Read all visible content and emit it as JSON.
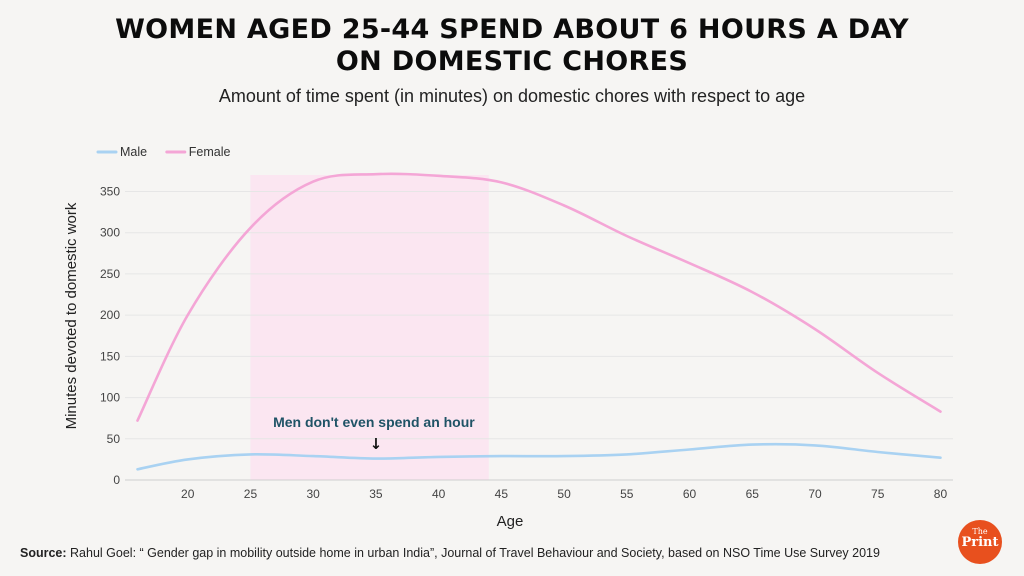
{
  "chart_data": {
    "type": "line",
    "title_line1": "WOMEN AGED 25-44 SPEND ABOUT 6 HOURS A DAY",
    "title_line2": "ON DOMESTIC CHORES",
    "subtitle": "Amount of time spent (in minutes) on domestic chores with respect to age",
    "xlabel": "Age",
    "ylabel": "Minutes devoted to domestic work",
    "xlim": [
      15,
      81
    ],
    "ylim": [
      0,
      370
    ],
    "xticks": [
      20,
      25,
      30,
      35,
      40,
      45,
      50,
      55,
      60,
      65,
      70,
      75,
      80
    ],
    "yticks": [
      0,
      50,
      100,
      150,
      200,
      250,
      300,
      350
    ],
    "highlight_range": [
      25,
      44
    ],
    "series": [
      {
        "name": "Male",
        "color": "#a9d2f2",
        "x": [
          16,
          20,
          25,
          30,
          35,
          40,
          45,
          50,
          55,
          60,
          65,
          70,
          75,
          80
        ],
        "y": [
          13,
          25,
          31,
          29,
          26,
          28,
          29,
          29,
          31,
          37,
          43,
          42,
          34,
          27
        ]
      },
      {
        "name": "Female",
        "color": "#f4a6d6",
        "x": [
          16,
          20,
          25,
          30,
          35,
          40,
          45,
          50,
          55,
          60,
          65,
          70,
          75,
          80
        ],
        "y": [
          72,
          200,
          306,
          362,
          371,
          369,
          361,
          333,
          296,
          263,
          228,
          183,
          130,
          83
        ]
      }
    ],
    "annotation": {
      "text": "Men don't even spend an hour",
      "arrow": "↓",
      "x": 35,
      "y": 26
    }
  },
  "source": {
    "label": "Source:",
    "text": "Rahul Goel: “ Gender gap in mobility outside home in urban India”, Journal of Travel Behaviour and Society, based on NSO Time Use Survey 2019"
  },
  "logo": {
    "the": "The",
    "print": "Print",
    "color": "#e8501e"
  }
}
